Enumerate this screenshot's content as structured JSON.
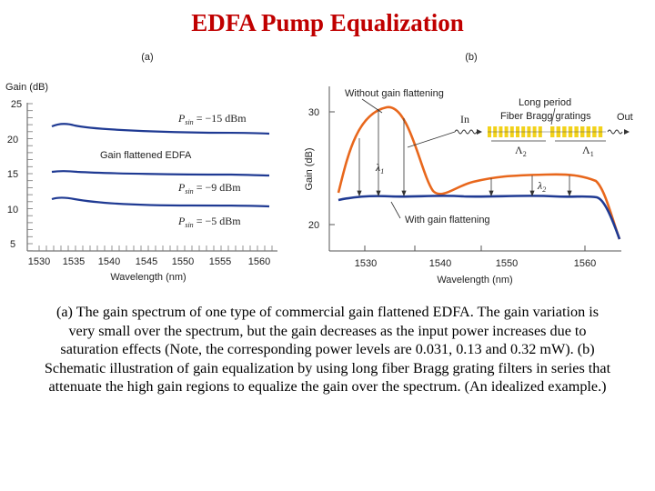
{
  "title": "EDFA Pump Equalization",
  "panel_a": {
    "label": "(a)",
    "ylabel": "Gain (dB)",
    "xlabel": "Wavelength (nm)",
    "xticks": [
      "1530",
      "1535",
      "1540",
      "1545",
      "1550",
      "1555",
      "1560"
    ],
    "yticks": [
      "25",
      "20",
      "15",
      "10",
      "5"
    ],
    "center_label": "Gain flattened EDFA",
    "power_labels": [
      {
        "p": "P",
        "sub": "sin",
        "value": " = −15 dBm"
      },
      {
        "p": "P",
        "sub": "sin",
        "value": " = −9 dBm"
      },
      {
        "p": "P",
        "sub": "sin",
        "value": " = −5 dBm"
      }
    ]
  },
  "panel_b": {
    "label": "(b)",
    "ylabel": "Gain (dB)",
    "xlabel": "Wavelength (nm)",
    "xticks": [
      "1530",
      "1540",
      "1550",
      "1560"
    ],
    "yticks": [
      "30",
      "20"
    ],
    "without_label": "Without gain flattening",
    "with_label": "With gain flattening",
    "grating_label": "Long period\nFiber Bragg gratings",
    "in_label": "In",
    "out_label": "Out",
    "lambda1": "λ",
    "lambda1_sub": "1",
    "lambda2": "λ",
    "lambda2_sub": "2",
    "Lambda2": "Λ",
    "Lambda2_sub": "2",
    "Lambda1": "Λ",
    "Lambda1_sub": "1"
  },
  "colors": {
    "title": "#c00000",
    "curve_blue": "#1f3a93",
    "curve_orange": "#e8671c",
    "grating_yellow": "#f2d21a"
  },
  "caption": "(a) The gain spectrum of one type of commercial gain flattened EDFA. The gain variation is very small over the spectrum, but the gain decreases as the input power increases due to saturation effects (Note, the corresponding power levels are 0.031, 0.13 and 0.32 mW). (b) Schematic illustration of gain equalization by using long fiber Bragg grating filters in series that attenuate the high gain regions to equalize the gain over the spectrum. (An idealized example.)"
}
